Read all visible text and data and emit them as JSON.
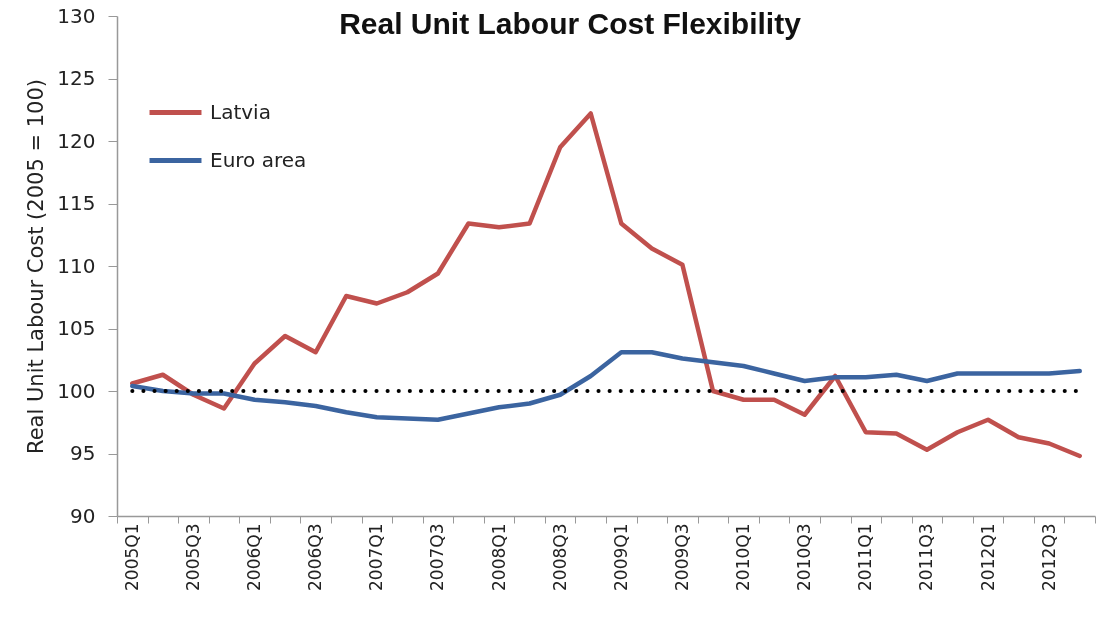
{
  "chart_data": {
    "type": "line",
    "title": "Real Unit Labour Cost Flexibility",
    "ylabel": "Real Unit Labour Cost (2005 = 100)",
    "categories": [
      "2005Q1",
      null,
      "2005Q3",
      null,
      "2006Q1",
      null,
      "2006Q3",
      null,
      "2007Q1",
      null,
      "2007Q3",
      null,
      "2008Q1",
      null,
      "2008Q3",
      null,
      "2009Q1",
      null,
      "2009Q3",
      null,
      "2010Q1",
      null,
      "2010Q3",
      null,
      "2011Q1",
      null,
      "2011Q3",
      null,
      "2012Q1",
      null,
      "2012Q3",
      null
    ],
    "series": [
      {
        "name": "Latvia",
        "color": "#c0504d",
        "values": [
          100.6,
          101.3,
          99.7,
          98.6,
          102.2,
          104.4,
          103.1,
          107.6,
          107.0,
          107.9,
          109.4,
          113.4,
          113.1,
          113.4,
          119.5,
          122.2,
          113.4,
          111.4,
          110.1,
          100.0,
          99.3,
          99.3,
          98.1,
          101.2,
          96.7,
          96.6,
          95.3,
          96.7,
          97.7,
          96.3,
          95.8,
          94.8
        ]
      },
      {
        "name": "Euro area",
        "color": "#3b64a0",
        "values": [
          100.4,
          100.0,
          99.8,
          99.8,
          99.3,
          99.1,
          98.8,
          98.3,
          97.9,
          97.8,
          97.7,
          98.2,
          98.7,
          99.0,
          99.7,
          101.2,
          103.1,
          103.1,
          102.6,
          102.3,
          102.0,
          101.4,
          100.8,
          101.1,
          101.1,
          101.3,
          100.8,
          101.4,
          101.4,
          101.4,
          101.4,
          101.6
        ]
      }
    ],
    "ylim": [
      90,
      130
    ],
    "yticks": [
      90,
      95,
      100,
      105,
      110,
      115,
      120,
      125,
      130
    ],
    "ref_lines": [
      {
        "axis": "y",
        "value": 100,
        "color": "#000000",
        "line_style": "dotted"
      }
    ],
    "legend": "top left",
    "line_style": "solid"
  }
}
